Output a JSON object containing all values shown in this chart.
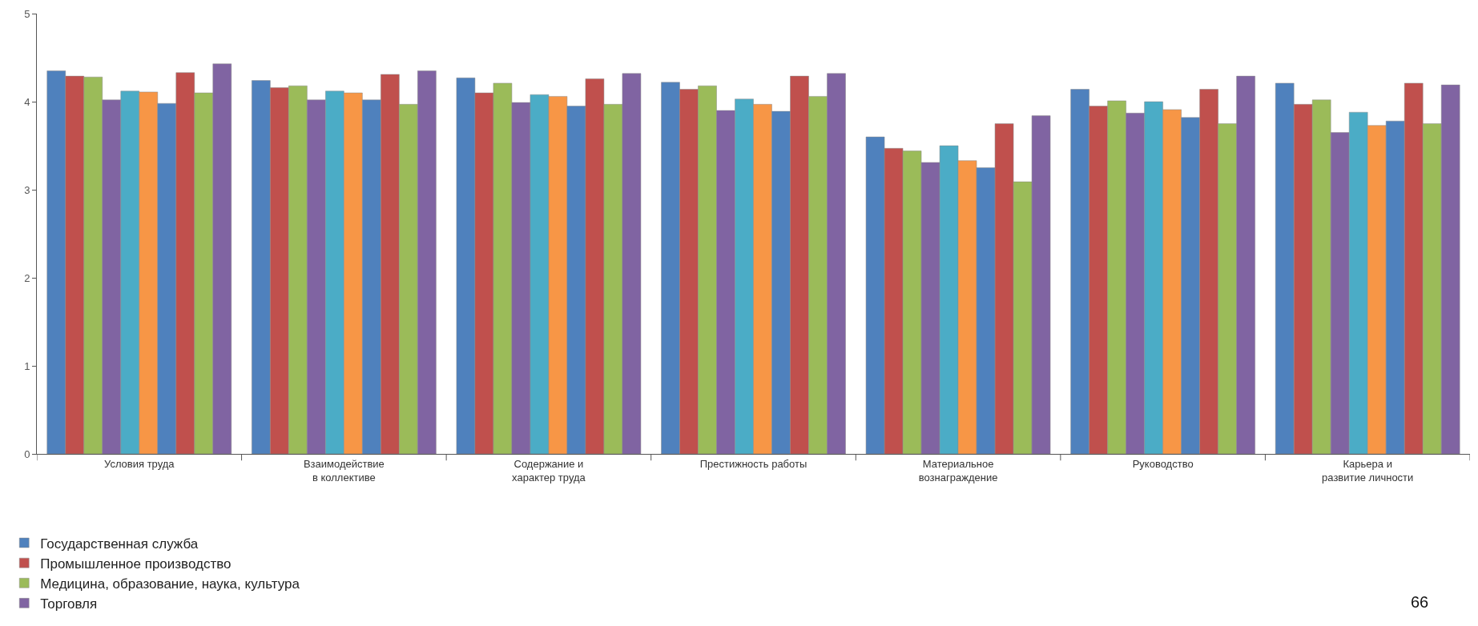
{
  "chart_data": {
    "type": "bar",
    "categories": [
      "Условия труда",
      "Взаимодействие в коллективе",
      "Содержание и характер труда",
      "Престижность работы",
      "Материальное вознаграждение",
      "Руководство",
      "Карьера и развитие личности"
    ],
    "series": [
      {
        "name": "Государственная служба",
        "color": "#4f81bd",
        "values": [
          4.35,
          4.24,
          4.27,
          4.22,
          3.6,
          4.14,
          4.21
        ]
      },
      {
        "name": "Промышленное производство",
        "color": "#c0504d",
        "values": [
          4.29,
          4.16,
          4.1,
          4.14,
          3.47,
          3.95,
          3.97
        ]
      },
      {
        "name": "Медицина, образование, наука, культура",
        "color": "#9bbb59",
        "values": [
          4.28,
          4.18,
          4.21,
          4.18,
          3.44,
          4.01,
          4.02
        ]
      },
      {
        "name": "Торговля",
        "color": "#8064a2",
        "values": [
          4.02,
          4.02,
          3.99,
          3.9,
          3.31,
          3.87,
          3.65
        ]
      },
      {
        "color": "#4bacc6",
        "values": [
          4.12,
          4.12,
          4.08,
          4.03,
          3.5,
          4.0,
          3.88
        ]
      },
      {
        "color": "#f79646",
        "values": [
          4.11,
          4.1,
          4.06,
          3.97,
          3.33,
          3.91,
          3.73
        ]
      },
      {
        "color": "#4f81bd",
        "values": [
          3.98,
          4.02,
          3.95,
          3.89,
          3.25,
          3.82,
          3.78
        ]
      },
      {
        "color": "#c0504d",
        "values": [
          4.33,
          4.31,
          4.26,
          4.29,
          3.75,
          4.14,
          4.21
        ]
      },
      {
        "color": "#9bbb59",
        "values": [
          4.1,
          3.97,
          3.97,
          4.06,
          3.09,
          3.75,
          3.75
        ]
      },
      {
        "color": "#8064a2",
        "values": [
          4.43,
          4.35,
          4.32,
          4.32,
          3.84,
          4.29,
          4.19
        ]
      }
    ],
    "ylim": [
      0,
      5
    ],
    "yticks": [
      0,
      1,
      2,
      3,
      4,
      5
    ],
    "legend": "bottom left",
    "annotations": [
      "66"
    ]
  }
}
